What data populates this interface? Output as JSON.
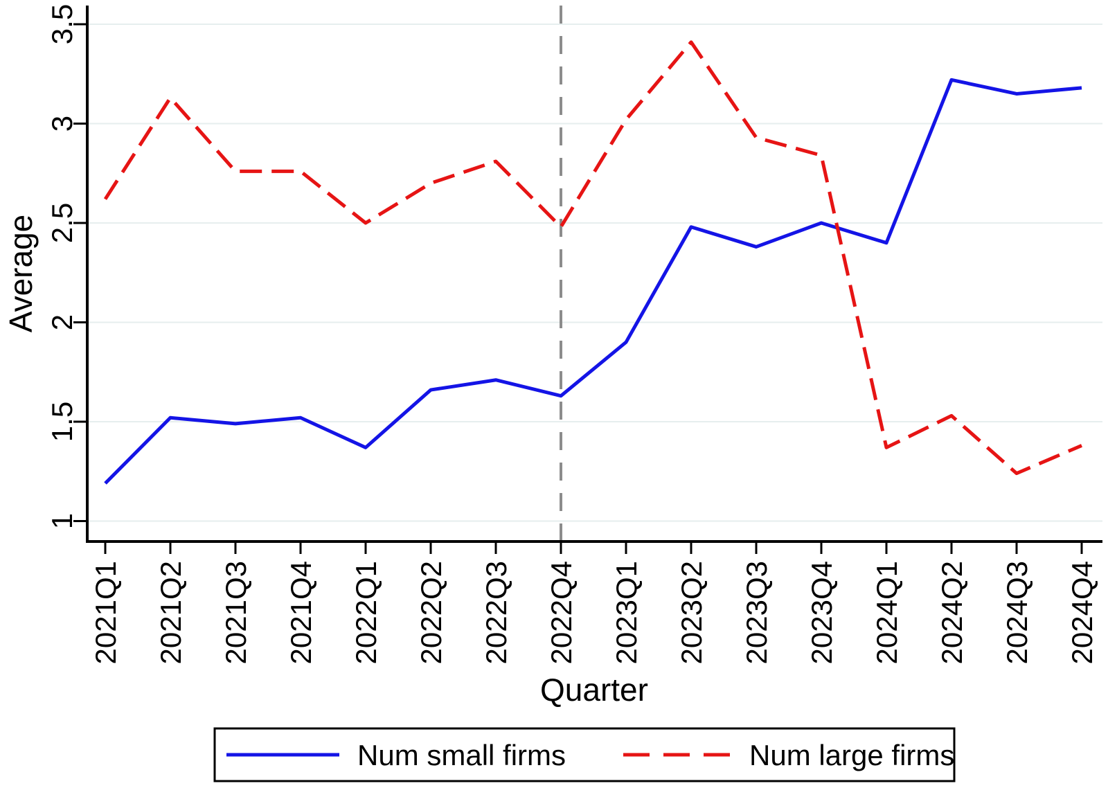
{
  "chart_data": {
    "type": "line",
    "title": "",
    "xlabel": "Quarter",
    "ylabel": "Average",
    "categories": [
      "2021Q1",
      "2021Q2",
      "2021Q3",
      "2021Q4",
      "2022Q1",
      "2022Q2",
      "2022Q3",
      "2022Q4",
      "2023Q1",
      "2023Q2",
      "2023Q3",
      "2023Q4",
      "2024Q1",
      "2024Q2",
      "2024Q3",
      "2024Q4"
    ],
    "series": [
      {
        "name": "Num small firms",
        "style": "solid",
        "color": "#1414e6",
        "values": [
          1.19,
          1.52,
          1.49,
          1.52,
          1.37,
          1.66,
          1.71,
          1.63,
          1.9,
          2.48,
          2.38,
          2.5,
          2.4,
          3.22,
          3.15,
          3.18
        ]
      },
      {
        "name": "Num large firms",
        "style": "dashed",
        "color": "#e61414",
        "values": [
          2.62,
          3.13,
          2.76,
          2.76,
          2.5,
          2.7,
          2.81,
          2.48,
          3.02,
          3.41,
          2.93,
          2.84,
          1.37,
          1.53,
          1.24,
          1.38
        ]
      }
    ],
    "yticks": [
      1,
      1.5,
      2,
      2.5,
      3,
      3.5
    ],
    "ytick_labels": [
      "1",
      "1.5",
      "2",
      "2.5",
      "3",
      "3.5"
    ],
    "ylim": [
      0.9,
      3.55
    ],
    "grid": true,
    "legend_position": "bottom",
    "vline": {
      "at": "2022Q4",
      "style": "dashed",
      "color": "#8c8c8c"
    },
    "colors": {
      "gridline": "#e6eeee",
      "axis": "#000000",
      "text": "#000000",
      "background": "#ffffff"
    }
  }
}
